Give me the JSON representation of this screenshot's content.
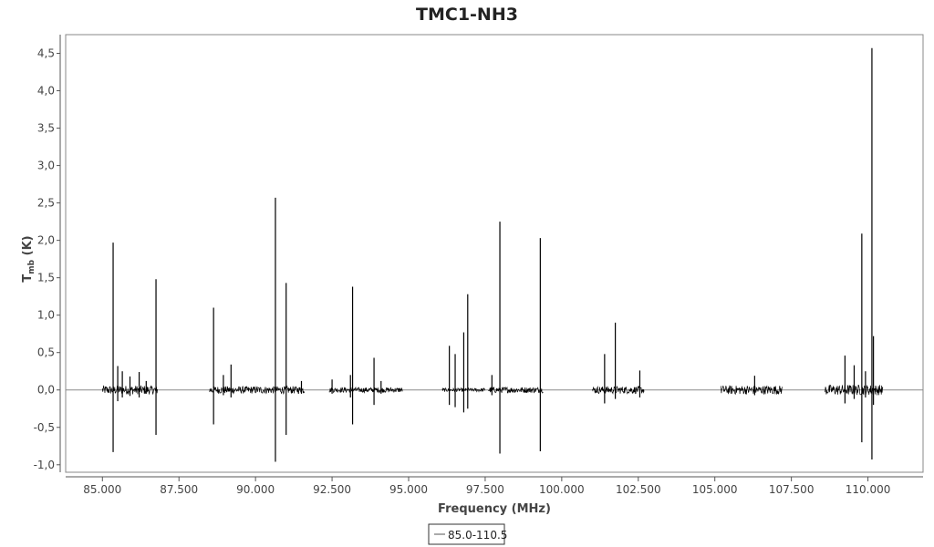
{
  "chart_data": {
    "type": "line",
    "title": "TMC1-NH3",
    "xlabel": "Frequency (MHz)",
    "ylabel_main": "T",
    "ylabel_sub": "mb",
    "ylabel_unit": " (K)",
    "xlim": [
      83800,
      111800
    ],
    "ylim": [
      -1.1,
      4.75
    ],
    "x_ticks": [
      85000,
      87500,
      90000,
      92500,
      95000,
      97500,
      100000,
      102500,
      105000,
      107500,
      110000
    ],
    "x_tick_labels": [
      "85.000",
      "87.500",
      "90.000",
      "92.500",
      "95.000",
      "97.500",
      "100.000",
      "102.500",
      "105.000",
      "107.500",
      "110.000"
    ],
    "y_ticks": [
      -1.0,
      -0.5,
      0.0,
      0.5,
      1.0,
      1.5,
      2.0,
      2.5,
      3.0,
      3.5,
      4.0,
      4.5
    ],
    "y_tick_labels": [
      "-1,0",
      "-0,5",
      "0,0",
      "0,5",
      "1,0",
      "1,5",
      "2,0",
      "2,5",
      "3,0",
      "3,5",
      "4,0",
      "4,5"
    ],
    "zero_line": 0.0,
    "legend": {
      "position": "bottom-center",
      "entries": [
        "85.0-110.5"
      ]
    },
    "series": [
      {
        "name": "85.0-110.5",
        "color": "#000000",
        "noise_segments": [
          {
            "x_start": 85000,
            "x_end": 86800,
            "amplitude": 0.06
          },
          {
            "x_start": 88500,
            "x_end": 91600,
            "amplitude": 0.05
          },
          {
            "x_start": 92400,
            "x_end": 94800,
            "amplitude": 0.035
          },
          {
            "x_start": 96100,
            "x_end": 97500,
            "amplitude": 0.025
          },
          {
            "x_start": 97600,
            "x_end": 99400,
            "amplitude": 0.04
          },
          {
            "x_start": 101000,
            "x_end": 102700,
            "amplitude": 0.05
          },
          {
            "x_start": 105200,
            "x_end": 107200,
            "amplitude": 0.06
          },
          {
            "x_start": 108600,
            "x_end": 110500,
            "amplitude": 0.07
          }
        ],
        "lines": [
          {
            "x": 85350,
            "y_max": 1.97,
            "y_min": -0.83
          },
          {
            "x": 85500,
            "y_max": 0.32,
            "y_min": -0.15
          },
          {
            "x": 85650,
            "y_max": 0.25,
            "y_min": -0.1
          },
          {
            "x": 85900,
            "y_max": 0.18,
            "y_min": -0.08
          },
          {
            "x": 86200,
            "y_max": 0.24,
            "y_min": -0.1
          },
          {
            "x": 86430,
            "y_max": 0.12,
            "y_min": -0.05
          },
          {
            "x": 86750,
            "y_max": 1.48,
            "y_min": -0.6
          },
          {
            "x": 88630,
            "y_max": 1.1,
            "y_min": -0.46
          },
          {
            "x": 88950,
            "y_max": 0.2,
            "y_min": -0.07
          },
          {
            "x": 89200,
            "y_max": 0.34,
            "y_min": -0.1
          },
          {
            "x": 90650,
            "y_max": 2.57,
            "y_min": -0.96
          },
          {
            "x": 91000,
            "y_max": 1.43,
            "y_min": -0.6
          },
          {
            "x": 91500,
            "y_max": 0.12,
            "y_min": -0.05
          },
          {
            "x": 92500,
            "y_max": 0.14,
            "y_min": -0.05
          },
          {
            "x": 93100,
            "y_max": 0.2,
            "y_min": -0.1
          },
          {
            "x": 93170,
            "y_max": 1.38,
            "y_min": -0.46
          },
          {
            "x": 93870,
            "y_max": 0.43,
            "y_min": -0.2
          },
          {
            "x": 94100,
            "y_max": 0.12,
            "y_min": -0.05
          },
          {
            "x": 96330,
            "y_max": 0.59,
            "y_min": -0.2
          },
          {
            "x": 96520,
            "y_max": 0.48,
            "y_min": -0.23
          },
          {
            "x": 96800,
            "y_max": 0.77,
            "y_min": -0.3
          },
          {
            "x": 96930,
            "y_max": 1.28,
            "y_min": -0.25
          },
          {
            "x": 97720,
            "y_max": 0.2,
            "y_min": -0.07
          },
          {
            "x": 97980,
            "y_max": 2.25,
            "y_min": -0.85
          },
          {
            "x": 99300,
            "y_max": 2.03,
            "y_min": -0.82
          },
          {
            "x": 101400,
            "y_max": 0.48,
            "y_min": -0.18
          },
          {
            "x": 101750,
            "y_max": 0.9,
            "y_min": -0.12
          },
          {
            "x": 102550,
            "y_max": 0.26,
            "y_min": -0.1
          },
          {
            "x": 106300,
            "y_max": 0.19,
            "y_min": -0.07
          },
          {
            "x": 109250,
            "y_max": 0.46,
            "y_min": -0.18
          },
          {
            "x": 109550,
            "y_max": 0.33,
            "y_min": -0.12
          },
          {
            "x": 109800,
            "y_max": 2.09,
            "y_min": -0.7
          },
          {
            "x": 109920,
            "y_max": 0.25,
            "y_min": -0.1
          },
          {
            "x": 110130,
            "y_max": 4.57,
            "y_min": -0.93
          },
          {
            "x": 110180,
            "y_max": 0.72,
            "y_min": -0.2
          }
        ]
      }
    ]
  }
}
